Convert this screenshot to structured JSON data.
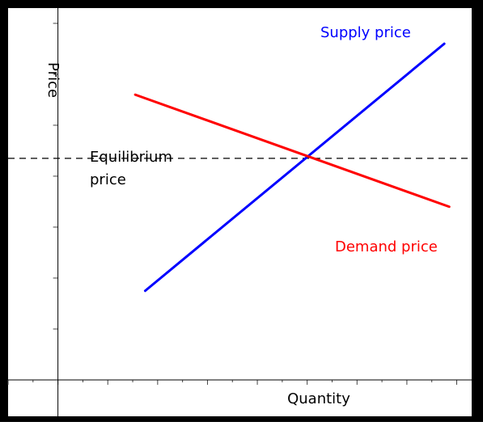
{
  "chart_data": {
    "type": "line",
    "title": "",
    "xlabel": "Quantity",
    "ylabel": "Price",
    "xlim": [
      -1,
      8.3
    ],
    "ylim": [
      0,
      7.3
    ],
    "series": [
      {
        "name": "Supply price",
        "color": "#0000ff",
        "x": [
          1.75,
          7.75
        ],
        "y": [
          1.75,
          6.6
        ]
      },
      {
        "name": "Demand price",
        "color": "#ff0000",
        "x": [
          1.55,
          7.85
        ],
        "y": [
          5.6,
          3.4
        ]
      }
    ],
    "reference_lines": [
      {
        "orientation": "horizontal",
        "y": 4.35,
        "style": "dashed",
        "color": "#000000"
      }
    ],
    "annotations": [
      {
        "text_lines": [
          "Equilibrium",
          "price"
        ]
      }
    ],
    "x_ticks": [
      -1,
      -0.5,
      0,
      0.5,
      1,
      1.5,
      2,
      2.5,
      3,
      3.5,
      4,
      4.5,
      5,
      5.5,
      6,
      6.5,
      7,
      7.5,
      8
    ],
    "y_ticks": [
      1,
      2,
      3,
      4,
      5,
      6,
      7
    ],
    "grid": false,
    "legend": "none; series labelled directly on the plot"
  }
}
